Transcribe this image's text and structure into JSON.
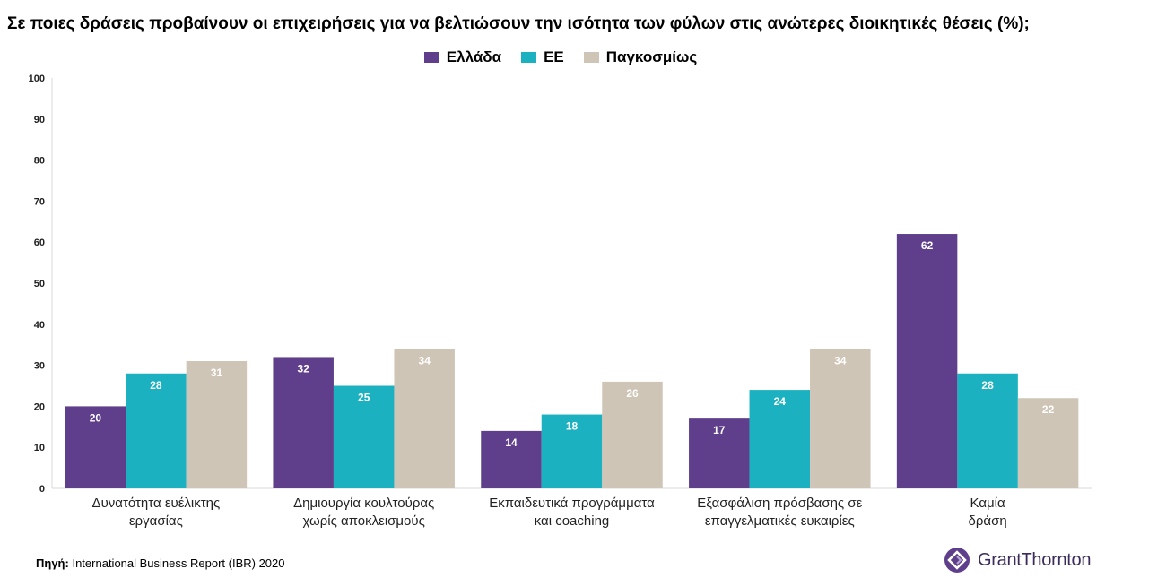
{
  "title": "Σε ποιες δράσεις προβαίνουν οι επιχειρήσεις για να βελτιώσουν την ισότητα των φύλων στις ανώτερες διοικητικές θέσεις (%);",
  "source_label": "Πηγή:",
  "source_text": "International Business Report (IBR) 2020",
  "brand": "GrantThornton",
  "colors": {
    "greece": "#5f3f8b",
    "eu": "#1cb1c1",
    "global": "#cfc5b6",
    "brand": "#5f3f8b"
  },
  "chart_data": {
    "type": "bar",
    "title": "Σε ποιες δράσεις προβαίνουν οι επιχειρήσεις για να βελτιώσουν την ισότητα των φύλων στις ανώτερες διοικητικές θέσεις (%);",
    "categories": [
      [
        "Δυνατότητα ευέλικτης",
        "εργασίας"
      ],
      [
        "Δημιουργία κουλτούρας",
        "χωρίς αποκλεισμούς"
      ],
      [
        "Εκπαιδευτικά προγράμματα",
        "και coaching"
      ],
      [
        "Εξασφάλιση πρόσβασης σε",
        "επαγγελματικές ευκαιρίες"
      ],
      [
        "Καμία",
        "δράση"
      ]
    ],
    "series": [
      {
        "name": "Ελλάδα",
        "values": [
          20,
          32,
          14,
          17,
          62
        ]
      },
      {
        "name": "ΕΕ",
        "values": [
          28,
          25,
          18,
          24,
          28
        ]
      },
      {
        "name": "Παγκοσμίως",
        "values": [
          31,
          34,
          26,
          34,
          22
        ]
      }
    ],
    "ylim": [
      0,
      100
    ],
    "yticks": [
      0,
      10,
      20,
      30,
      40,
      50,
      60,
      70,
      80,
      90,
      100
    ],
    "xlabel": "",
    "ylabel": "",
    "grid": false,
    "legend": "top-center"
  }
}
